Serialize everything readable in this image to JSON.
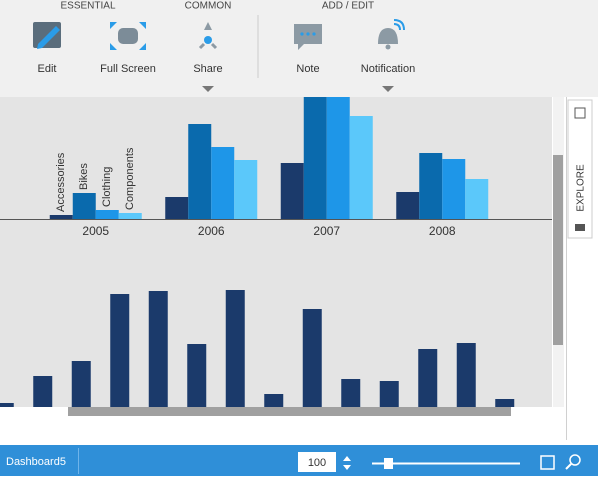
{
  "toolbar": {
    "groups": [
      {
        "title": "ESSENTIAL",
        "buttons": [
          "Edit",
          "Full Screen"
        ]
      },
      {
        "title": "COMMON",
        "buttons": [
          "Share"
        ]
      },
      {
        "title": "ADD / EDIT",
        "buttons": [
          "Note",
          "Notification"
        ]
      }
    ]
  },
  "chart_data": [
    {
      "type": "bar",
      "categories": [
        "2005",
        "2006",
        "2007",
        "2008"
      ],
      "series": [
        {
          "name": "Accessories",
          "color": "#1b3a6b",
          "values": [
            4,
            22,
            56,
            27
          ]
        },
        {
          "name": "Bikes",
          "color": "#0a6aad",
          "values": [
            26,
            95,
            122,
            66
          ]
        },
        {
          "name": "Clothing",
          "color": "#1e96e8",
          "values": [
            9,
            72,
            122,
            60
          ]
        },
        {
          "name": "Components",
          "color": "#5bc8fa",
          "values": [
            6,
            59,
            103,
            40
          ]
        }
      ],
      "ylim": [
        0,
        122
      ]
    },
    {
      "type": "bar",
      "categories": [
        null,
        null,
        null,
        null,
        null,
        null,
        null,
        null,
        null,
        null,
        null,
        null,
        null,
        null
      ],
      "values": [
        4,
        31,
        46,
        113,
        116,
        63,
        117,
        13,
        98,
        28,
        26,
        58,
        64,
        8
      ],
      "color": "#1b3a6b",
      "ylim": [
        0,
        166
      ]
    }
  ],
  "side_panel": {
    "tab": "EXPLORE"
  },
  "status_bar": {
    "dashboard": "Dashboard5",
    "zoom": 100
  }
}
